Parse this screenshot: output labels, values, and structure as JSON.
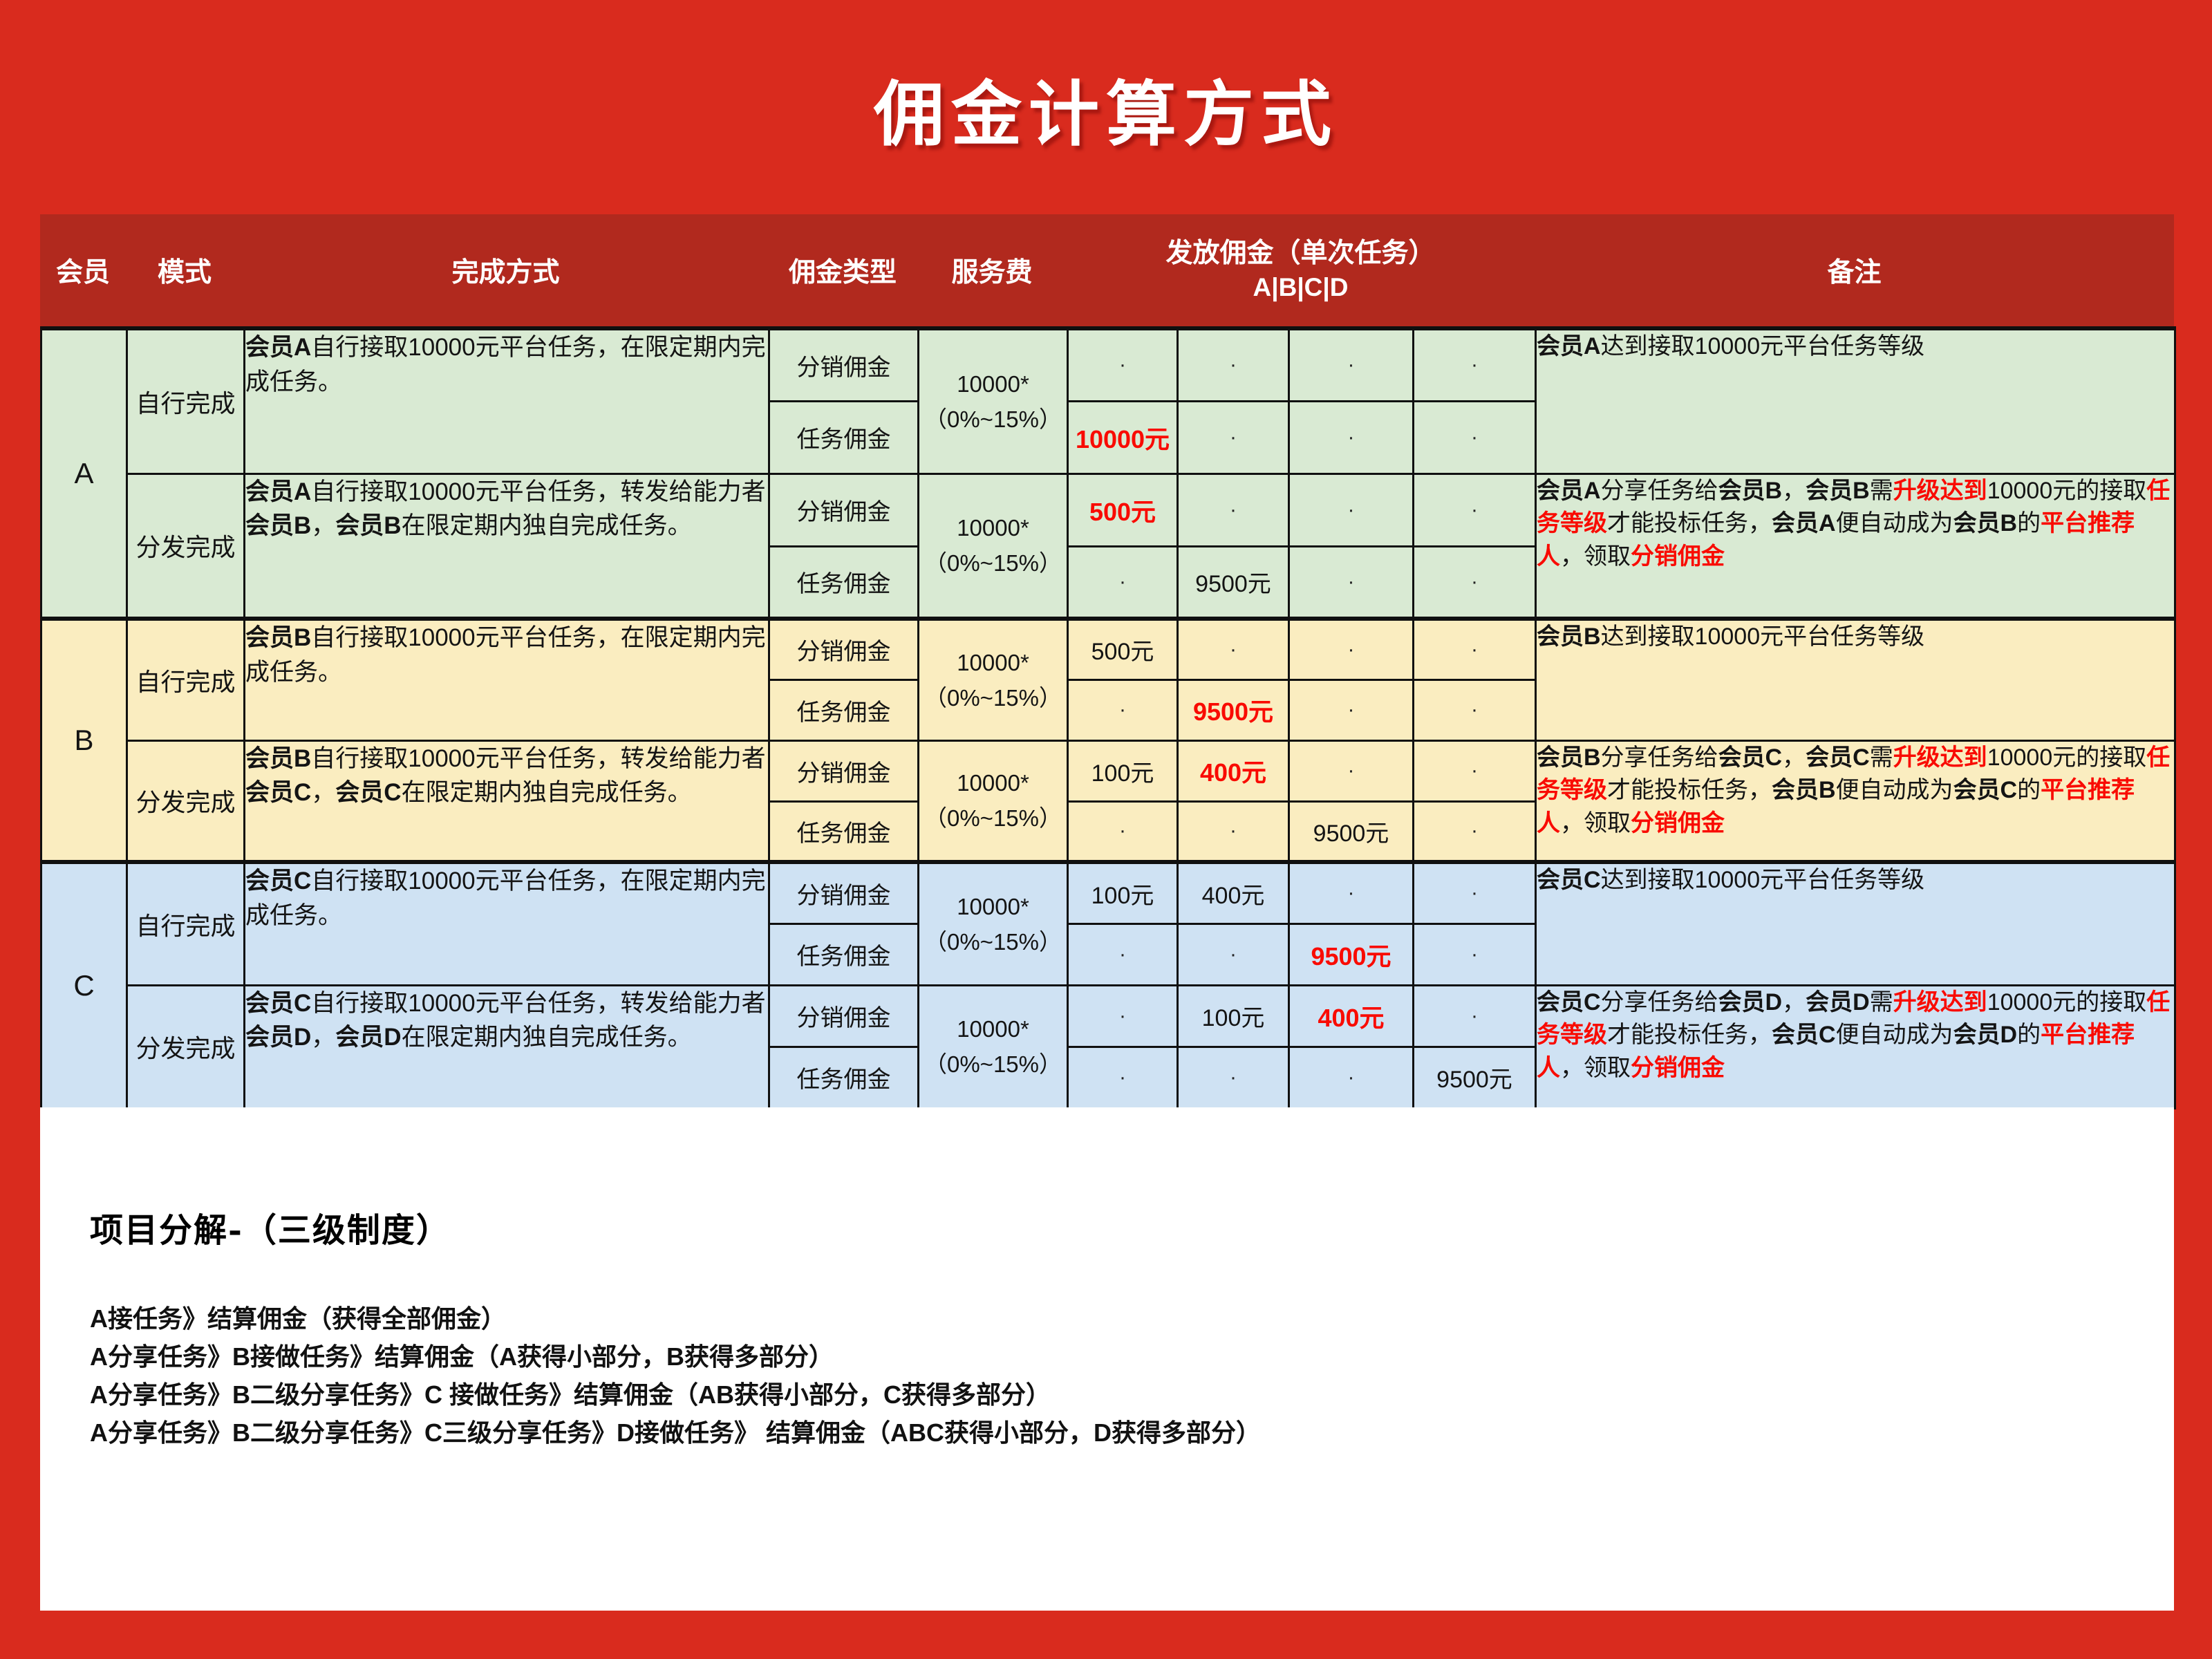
{
  "page": {
    "title": "佣金计算方式",
    "colors": {
      "background": "#D92B1E",
      "header_band": "#B1291E",
      "highlight_red": "#F90B02",
      "member_a_row": "#D9EAD3",
      "member_b_row": "#FAEDC0",
      "member_c_row": "#CFE2F3",
      "border_black": "#101010",
      "panel_white": "#FFFFFF"
    }
  },
  "table": {
    "headers": {
      "member": "会员",
      "mode": "模式",
      "method": "完成方式",
      "commission_type": "佣金类型",
      "service_fee": "服务费",
      "payout": "发放佣金（单次任务）",
      "payout_sub": "A|B|C|D",
      "note": "备注"
    },
    "service_fee_line1": "10000*",
    "service_fee_line2": "（0%~15%）",
    "members": [
      {
        "id": "A",
        "color": "#D9EAD3",
        "modes": [
          {
            "mode": "自行完成",
            "method": [
              {
                "t": "会员A",
                "b": 1
              },
              {
                "t": "自行接取10000元平台任务，在限定期内完成任务。"
              }
            ],
            "rows": [
              {
                "type": "分销佣金",
                "cells": [
                  {
                    "t": "·"
                  },
                  {
                    "t": "·"
                  },
                  {
                    "t": "·"
                  },
                  {
                    "t": "·"
                  }
                ]
              },
              {
                "type": "任务佣金",
                "cells": [
                  {
                    "t": "10000元",
                    "r": 1
                  },
                  {
                    "t": "·"
                  },
                  {
                    "t": "·"
                  },
                  {
                    "t": "·"
                  }
                ]
              }
            ],
            "note": [
              {
                "t": "会员A",
                "b": 1
              },
              {
                "t": "达到接取10000元平台任务等级"
              }
            ]
          },
          {
            "mode": "分发完成",
            "method": [
              {
                "t": "会员A",
                "b": 1
              },
              {
                "t": "自行接取10000元平台任务，转发给能力者"
              },
              {
                "t": "会员B",
                "b": 1
              },
              {
                "t": "，"
              },
              {
                "t": "会员B",
                "b": 1
              },
              {
                "t": "在限定期内独自完成任务。"
              }
            ],
            "rows": [
              {
                "type": "分销佣金",
                "cells": [
                  {
                    "t": "500元",
                    "r": 1
                  },
                  {
                    "t": "·"
                  },
                  {
                    "t": "·"
                  },
                  {
                    "t": "·"
                  }
                ]
              },
              {
                "type": "任务佣金",
                "cells": [
                  {
                    "t": "·"
                  },
                  {
                    "t": "9500元"
                  },
                  {
                    "t": "·"
                  },
                  {
                    "t": "·"
                  }
                ]
              }
            ],
            "note": [
              {
                "t": "会员A",
                "b": 1
              },
              {
                "t": "分享任务给"
              },
              {
                "t": "会员B",
                "b": 1
              },
              {
                "t": "，"
              },
              {
                "t": "会员B",
                "b": 1
              },
              {
                "t": "需"
              },
              {
                "t": "升级达到",
                "r": 1
              },
              {
                "t": "10000元的接取"
              },
              {
                "t": "任务等级",
                "r": 1
              },
              {
                "t": "才能投标任务，"
              },
              {
                "t": "会员A",
                "b": 1
              },
              {
                "t": "便自动成为"
              },
              {
                "t": "会员B",
                "b": 1
              },
              {
                "t": "的"
              },
              {
                "t": "平台推荐人",
                "r": 1
              },
              {
                "t": "，领取"
              },
              {
                "t": "分销佣金",
                "r": 1
              }
            ]
          }
        ]
      },
      {
        "id": "B",
        "color": "#FAEDC0",
        "modes": [
          {
            "mode": "自行完成",
            "method": [
              {
                "t": "会员B",
                "b": 1
              },
              {
                "t": "自行接取10000元平台任务，在限定期内完成任务。"
              }
            ],
            "rows": [
              {
                "type": "分销佣金",
                "cells": [
                  {
                    "t": "500元"
                  },
                  {
                    "t": "·"
                  },
                  {
                    "t": "·"
                  },
                  {
                    "t": "·"
                  }
                ]
              },
              {
                "type": "任务佣金",
                "cells": [
                  {
                    "t": "·"
                  },
                  {
                    "t": "9500元",
                    "r": 1
                  },
                  {
                    "t": "·"
                  },
                  {
                    "t": "·"
                  }
                ]
              }
            ],
            "note": [
              {
                "t": "会员B",
                "b": 1
              },
              {
                "t": "达到接取10000元平台任务等级"
              }
            ]
          },
          {
            "mode": "分发完成",
            "method": [
              {
                "t": "会员B",
                "b": 1
              },
              {
                "t": "自行接取10000元平台任务，转发给能力者"
              },
              {
                "t": "会员C",
                "b": 1
              },
              {
                "t": "，"
              },
              {
                "t": "会员C",
                "b": 1
              },
              {
                "t": "在限定期内独自完成任务。"
              }
            ],
            "rows": [
              {
                "type": "分销佣金",
                "cells": [
                  {
                    "t": "100元"
                  },
                  {
                    "t": "400元",
                    "r": 1
                  },
                  {
                    "t": "·"
                  },
                  {
                    "t": "·"
                  }
                ]
              },
              {
                "type": "任务佣金",
                "cells": [
                  {
                    "t": "·"
                  },
                  {
                    "t": "·"
                  },
                  {
                    "t": "9500元"
                  },
                  {
                    "t": "·"
                  }
                ]
              }
            ],
            "note": [
              {
                "t": "会员B",
                "b": 1
              },
              {
                "t": "分享任务给"
              },
              {
                "t": "会员C",
                "b": 1
              },
              {
                "t": "，"
              },
              {
                "t": "会员C",
                "b": 1
              },
              {
                "t": "需"
              },
              {
                "t": "升级达到",
                "r": 1
              },
              {
                "t": "10000元的接取"
              },
              {
                "t": "任务等级",
                "r": 1
              },
              {
                "t": "才能投标任务，"
              },
              {
                "t": "会员B",
                "b": 1
              },
              {
                "t": "便自动成为"
              },
              {
                "t": "会员C",
                "b": 1
              },
              {
                "t": "的"
              },
              {
                "t": "平台推荐人",
                "r": 1
              },
              {
                "t": "，领取"
              },
              {
                "t": "分销佣金",
                "r": 1
              }
            ]
          }
        ]
      },
      {
        "id": "C",
        "color": "#CFE2F3",
        "modes": [
          {
            "mode": "自行完成",
            "method": [
              {
                "t": "会员C",
                "b": 1
              },
              {
                "t": "自行接取10000元平台任务，在限定期内完成任务。"
              }
            ],
            "rows": [
              {
                "type": "分销佣金",
                "cells": [
                  {
                    "t": "100元"
                  },
                  {
                    "t": "400元"
                  },
                  {
                    "t": "·"
                  },
                  {
                    "t": "·"
                  }
                ]
              },
              {
                "type": "任务佣金",
                "cells": [
                  {
                    "t": "·"
                  },
                  {
                    "t": "·"
                  },
                  {
                    "t": "9500元",
                    "r": 1
                  },
                  {
                    "t": "·"
                  }
                ]
              }
            ],
            "note": [
              {
                "t": "会员C",
                "b": 1
              },
              {
                "t": "达到接取10000元平台任务等级"
              }
            ]
          },
          {
            "mode": "分发完成",
            "method": [
              {
                "t": "会员C",
                "b": 1
              },
              {
                "t": "自行接取10000元平台任务，转发给能力者"
              },
              {
                "t": "会员D",
                "b": 1
              },
              {
                "t": "，"
              },
              {
                "t": "会员D",
                "b": 1
              },
              {
                "t": "在限定期内独自完成任务。"
              }
            ],
            "rows": [
              {
                "type": "分销佣金",
                "cells": [
                  {
                    "t": "·"
                  },
                  {
                    "t": "100元"
                  },
                  {
                    "t": "400元",
                    "r": 1
                  },
                  {
                    "t": "·"
                  }
                ]
              },
              {
                "type": "任务佣金",
                "cells": [
                  {
                    "t": "·"
                  },
                  {
                    "t": "·"
                  },
                  {
                    "t": "·"
                  },
                  {
                    "t": "9500元"
                  }
                ]
              }
            ],
            "note": [
              {
                "t": "会员C",
                "b": 1
              },
              {
                "t": "分享任务给"
              },
              {
                "t": "会员D",
                "b": 1
              },
              {
                "t": "，"
              },
              {
                "t": "会员D",
                "b": 1
              },
              {
                "t": "需"
              },
              {
                "t": "升级达到",
                "r": 1
              },
              {
                "t": "10000元的接取"
              },
              {
                "t": "任务等级",
                "r": 1
              },
              {
                "t": "才能投标任务，"
              },
              {
                "t": "会员C",
                "b": 1
              },
              {
                "t": "便自动成为"
              },
              {
                "t": "会员D",
                "b": 1
              },
              {
                "t": "的"
              },
              {
                "t": "平台推荐人",
                "r": 1
              },
              {
                "t": "，领取"
              },
              {
                "t": "分销佣金",
                "r": 1
              }
            ]
          }
        ]
      }
    ]
  },
  "footer": {
    "heading": "项目分解-（三级制度）",
    "lines": [
      "A接任务》结算佣金（获得全部佣金）",
      "A分享任务》B接做任务》结算佣金（A获得小部分，B获得多部分）",
      "A分享任务》B二级分享任务》C 接做任务》结算佣金（AB获得小部分，C获得多部分）",
      "A分享任务》B二级分享任务》C三级分享任务》D接做任务》 结算佣金（ABC获得小部分，D获得多部分）"
    ]
  }
}
